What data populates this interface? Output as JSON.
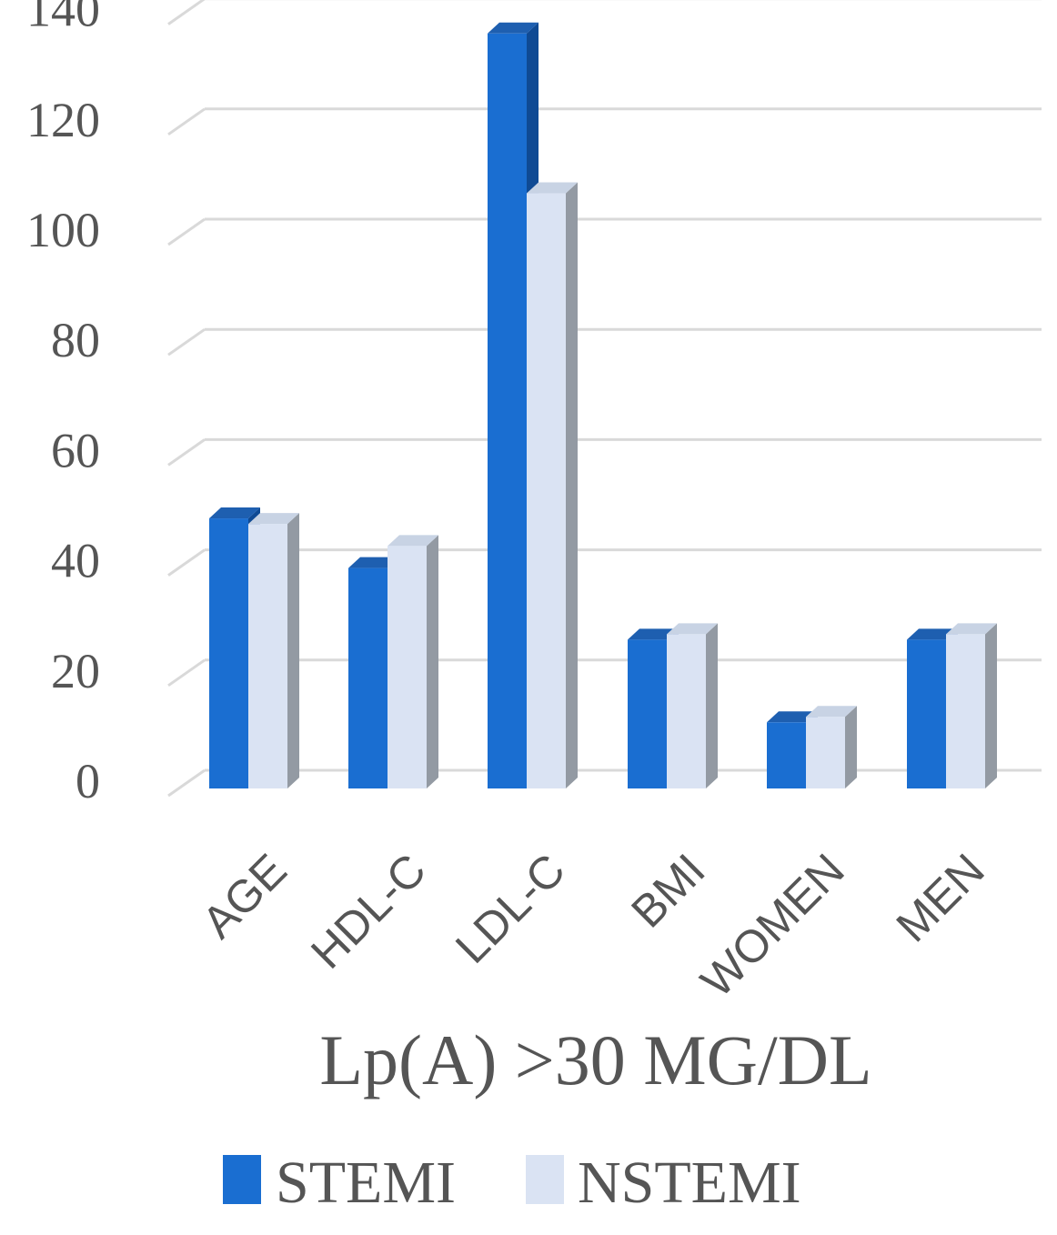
{
  "chart_data": {
    "type": "bar",
    "title": "Lp(A) >30 MG/DL",
    "xlabel": "Lp(A) >30 MG/DL",
    "ylabel": "",
    "categories": [
      "AGE",
      "HDL-C",
      "LDL-C",
      "BMI",
      "WOMEN",
      "MEN"
    ],
    "series": [
      {
        "name": "STEMI",
        "values": [
          49,
          40,
          137,
          27,
          12,
          27
        ],
        "color": "#1a6ed1"
      },
      {
        "name": "NSTEMI",
        "values": [
          48,
          44,
          108,
          28,
          13,
          28
        ],
        "color": "#dae3f3"
      }
    ],
    "ylim": [
      0,
      140
    ],
    "yticks": [
      0,
      20,
      40,
      60,
      80,
      100,
      120,
      140
    ],
    "grid": true,
    "legend_position": "bottom",
    "style": "3d-clustered-column"
  }
}
